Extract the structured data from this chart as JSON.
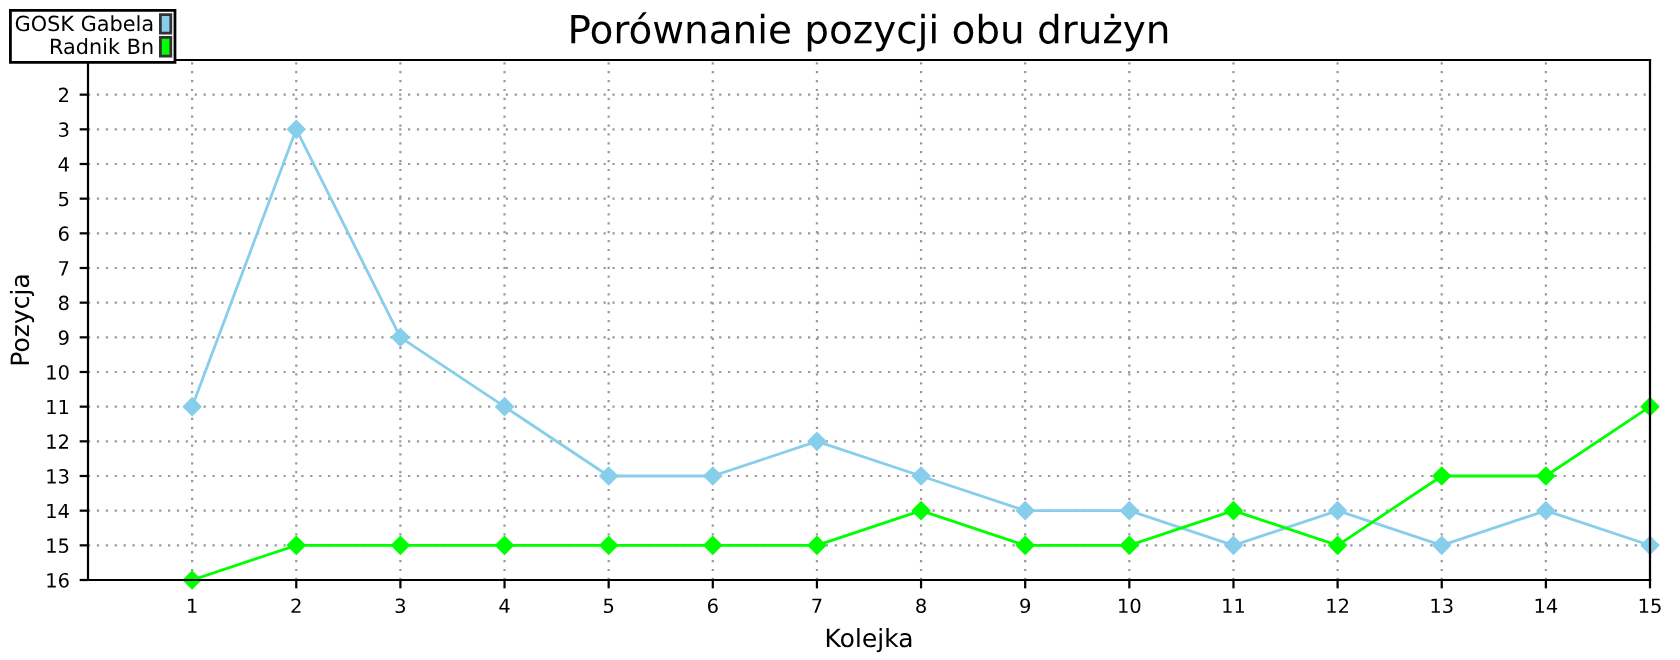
{
  "chart_data": {
    "type": "line",
    "title": "Porównanie pozycji obu drużyn",
    "xlabel": "Kolejka",
    "ylabel": "Pozycja",
    "x": [
      1,
      2,
      3,
      4,
      5,
      6,
      7,
      8,
      9,
      10,
      11,
      12,
      13,
      14,
      15
    ],
    "series": [
      {
        "name": "GOSK Gabela",
        "color": "#87ceeb",
        "values": [
          11,
          3,
          9,
          11,
          13,
          13,
          12,
          13,
          14,
          14,
          15,
          14,
          15,
          14,
          15
        ]
      },
      {
        "name": "Radnik Bn",
        "color": "#00ff00",
        "values": [
          16,
          15,
          15,
          15,
          15,
          15,
          15,
          14,
          15,
          15,
          14,
          15,
          13,
          13,
          11
        ]
      }
    ],
    "xlim": [
      0,
      15
    ],
    "xticks": [
      1,
      2,
      3,
      4,
      5,
      6,
      7,
      8,
      9,
      10,
      11,
      12,
      13,
      14,
      15
    ],
    "ylim": [
      16,
      1
    ],
    "yticks": [
      2,
      3,
      4,
      5,
      6,
      7,
      8,
      9,
      10,
      11,
      12,
      13,
      14,
      15,
      16
    ],
    "grid": true,
    "legend": "top left",
    "marker": "diamond",
    "line_style": "solid"
  }
}
